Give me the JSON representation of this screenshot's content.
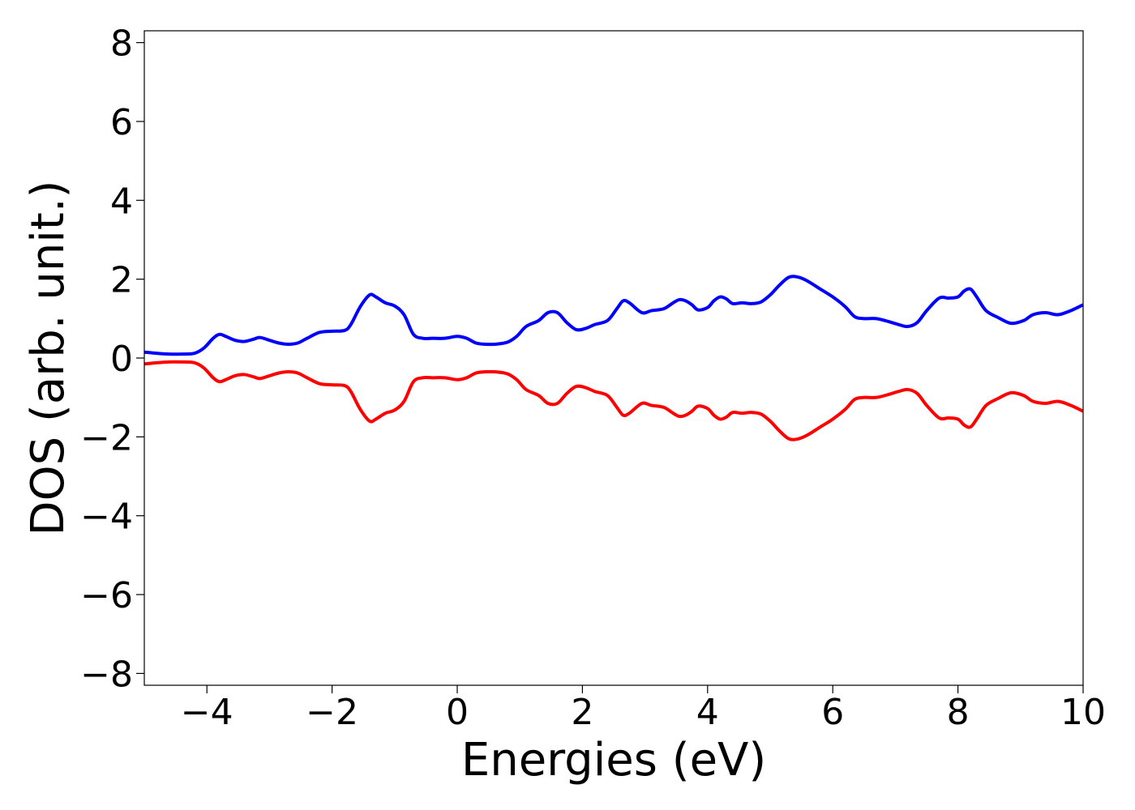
{
  "chart_data": {
    "type": "line",
    "title": "",
    "xlabel": "Energies (eV)",
    "ylabel": "DOS (arb. unit.)",
    "xlim": [
      -5,
      10
    ],
    "ylim": [
      -8.3,
      8.3
    ],
    "xticks": [
      -4,
      -2,
      0,
      2,
      4,
      6,
      8,
      10
    ],
    "yticks": [
      -8,
      -6,
      -4,
      -2,
      0,
      2,
      4,
      6,
      8
    ],
    "xtick_labels": [
      "−4",
      "−2",
      "0",
      "2",
      "4",
      "6",
      "8",
      "10"
    ],
    "ytick_labels": [
      "−8",
      "−6",
      "−4",
      "−2",
      "0",
      "2",
      "4",
      "6",
      "8"
    ],
    "grid": false,
    "legend": "none",
    "series": [
      {
        "color": "#0000ff",
        "x": [
          -5.0,
          -4.8,
          -4.6,
          -4.4,
          -4.2,
          -4.05,
          -3.9,
          -3.8,
          -3.7,
          -3.55,
          -3.4,
          -3.25,
          -3.15,
          -3.0,
          -2.85,
          -2.7,
          -2.55,
          -2.4,
          -2.2,
          -2.0,
          -1.8,
          -1.7,
          -1.55,
          -1.4,
          -1.3,
          -1.15,
          -1.0,
          -0.85,
          -0.7,
          -0.55,
          -0.4,
          -0.2,
          0.0,
          0.15,
          0.3,
          0.45,
          0.6,
          0.8,
          0.95,
          1.1,
          1.3,
          1.45,
          1.6,
          1.75,
          1.9,
          2.05,
          2.2,
          2.4,
          2.55,
          2.65,
          2.75,
          2.95,
          3.1,
          3.3,
          3.45,
          3.55,
          3.65,
          3.75,
          3.85,
          4.0,
          4.1,
          4.2,
          4.3,
          4.4,
          4.55,
          4.7,
          4.85,
          5.0,
          5.15,
          5.3,
          5.45,
          5.6,
          5.8,
          6.0,
          6.2,
          6.35,
          6.5,
          6.7,
          6.9,
          7.05,
          7.2,
          7.35,
          7.5,
          7.7,
          7.85,
          8.0,
          8.1,
          8.2,
          8.3,
          8.45,
          8.65,
          8.85,
          9.05,
          9.2,
          9.4,
          9.6,
          9.8,
          10.0
        ],
        "y": [
          0.15,
          0.12,
          0.1,
          0.1,
          0.12,
          0.25,
          0.5,
          0.6,
          0.55,
          0.45,
          0.42,
          0.48,
          0.52,
          0.45,
          0.38,
          0.35,
          0.38,
          0.5,
          0.65,
          0.68,
          0.7,
          0.85,
          1.3,
          1.6,
          1.55,
          1.4,
          1.32,
          1.1,
          0.6,
          0.5,
          0.5,
          0.5,
          0.55,
          0.5,
          0.38,
          0.35,
          0.35,
          0.4,
          0.55,
          0.8,
          0.95,
          1.15,
          1.15,
          0.9,
          0.72,
          0.75,
          0.85,
          0.95,
          1.25,
          1.45,
          1.4,
          1.15,
          1.2,
          1.25,
          1.4,
          1.48,
          1.45,
          1.35,
          1.22,
          1.28,
          1.45,
          1.55,
          1.5,
          1.38,
          1.4,
          1.38,
          1.42,
          1.6,
          1.85,
          2.05,
          2.05,
          1.95,
          1.75,
          1.55,
          1.3,
          1.05,
          1.0,
          1.0,
          0.92,
          0.85,
          0.8,
          0.9,
          1.2,
          1.52,
          1.52,
          1.55,
          1.7,
          1.75,
          1.55,
          1.2,
          1.02,
          0.88,
          0.95,
          1.1,
          1.15,
          1.1,
          1.2,
          1.35
        ]
      },
      {
        "color": "#ff0000",
        "x": [
          -5.0,
          -4.8,
          -4.6,
          -4.4,
          -4.2,
          -4.05,
          -3.9,
          -3.8,
          -3.7,
          -3.55,
          -3.4,
          -3.25,
          -3.15,
          -3.0,
          -2.85,
          -2.7,
          -2.55,
          -2.4,
          -2.2,
          -2.0,
          -1.8,
          -1.7,
          -1.55,
          -1.4,
          -1.3,
          -1.15,
          -1.0,
          -0.85,
          -0.7,
          -0.55,
          -0.4,
          -0.2,
          0.0,
          0.15,
          0.3,
          0.45,
          0.6,
          0.8,
          0.95,
          1.1,
          1.3,
          1.45,
          1.6,
          1.75,
          1.9,
          2.05,
          2.2,
          2.4,
          2.55,
          2.65,
          2.75,
          2.95,
          3.1,
          3.3,
          3.45,
          3.55,
          3.65,
          3.75,
          3.85,
          4.0,
          4.1,
          4.2,
          4.3,
          4.4,
          4.55,
          4.7,
          4.85,
          5.0,
          5.15,
          5.3,
          5.45,
          5.6,
          5.8,
          6.0,
          6.2,
          6.35,
          6.5,
          6.7,
          6.9,
          7.05,
          7.2,
          7.35,
          7.5,
          7.7,
          7.85,
          8.0,
          8.1,
          8.2,
          8.3,
          8.45,
          8.65,
          8.85,
          9.05,
          9.2,
          9.4,
          9.6,
          9.8,
          10.0
        ],
        "y": [
          -0.15,
          -0.12,
          -0.1,
          -0.1,
          -0.12,
          -0.25,
          -0.5,
          -0.6,
          -0.55,
          -0.45,
          -0.42,
          -0.48,
          -0.52,
          -0.45,
          -0.38,
          -0.35,
          -0.38,
          -0.5,
          -0.65,
          -0.68,
          -0.7,
          -0.85,
          -1.3,
          -1.6,
          -1.55,
          -1.4,
          -1.32,
          -1.1,
          -0.6,
          -0.5,
          -0.5,
          -0.5,
          -0.55,
          -0.5,
          -0.38,
          -0.35,
          -0.35,
          -0.4,
          -0.55,
          -0.8,
          -0.95,
          -1.15,
          -1.15,
          -0.9,
          -0.72,
          -0.75,
          -0.85,
          -0.95,
          -1.25,
          -1.45,
          -1.4,
          -1.15,
          -1.2,
          -1.25,
          -1.4,
          -1.48,
          -1.45,
          -1.35,
          -1.22,
          -1.28,
          -1.45,
          -1.55,
          -1.5,
          -1.38,
          -1.4,
          -1.38,
          -1.42,
          -1.6,
          -1.85,
          -2.05,
          -2.05,
          -1.95,
          -1.75,
          -1.55,
          -1.3,
          -1.05,
          -1.0,
          -1.0,
          -0.92,
          -0.85,
          -0.8,
          -0.9,
          -1.2,
          -1.52,
          -1.52,
          -1.55,
          -1.7,
          -1.75,
          -1.55,
          -1.2,
          -1.02,
          -0.88,
          -0.95,
          -1.1,
          -1.15,
          -1.1,
          -1.2,
          -1.35
        ]
      }
    ]
  }
}
